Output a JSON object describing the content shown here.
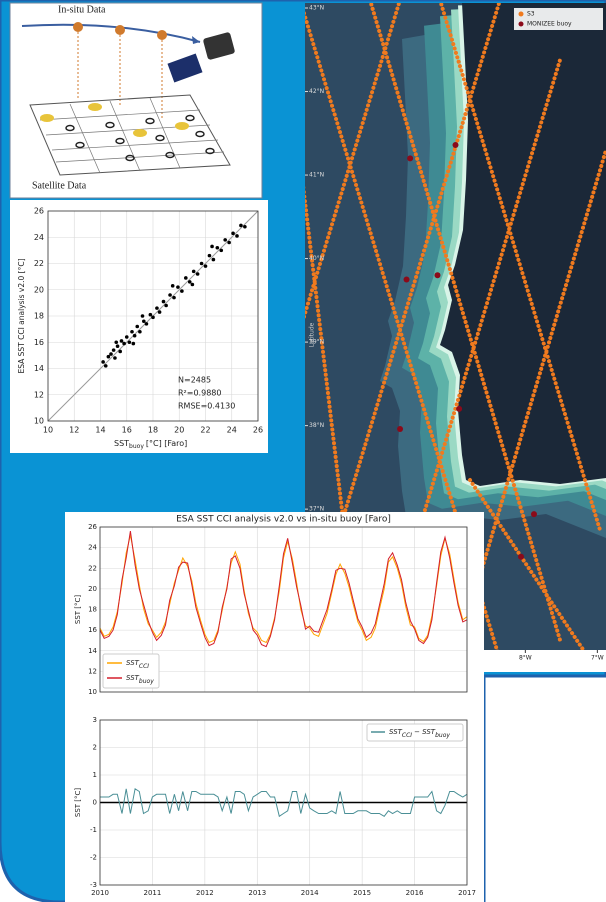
{
  "diagram": {
    "top_label": "In-situ Data",
    "bottom_label": "Satellite Data"
  },
  "chart_data": [
    {
      "type": "scatter",
      "ylabel": "ESA SST CCI analysis v2.0 [°C]",
      "xlabel": "SST",
      "xlabel_sub": "buoy",
      "xlabel_unit": "[°C] [Faro]",
      "annotations": [
        "N=2485",
        "R²=0.9880",
        "RMSE=0.4130"
      ],
      "color": "#000000",
      "grid": true,
      "xlim": [
        10,
        26
      ],
      "ylim": [
        10,
        26
      ],
      "xticks": [
        10,
        12,
        14,
        16,
        18,
        20,
        22,
        24,
        26
      ],
      "yticks": [
        10,
        12,
        14,
        16,
        18,
        20,
        22,
        24,
        26
      ],
      "x": [
        14.2,
        14.4,
        14.6,
        14.8,
        15.0,
        15.1,
        15.3,
        15.5,
        15.6,
        15.8,
        16.0,
        16.2,
        16.4,
        16.6,
        16.8,
        17.0,
        17.3,
        17.5,
        17.8,
        18.0,
        18.3,
        18.5,
        18.8,
        19.0,
        19.3,
        19.6,
        19.9,
        20.2,
        20.5,
        20.8,
        21.1,
        21.4,
        21.7,
        22.0,
        22.3,
        22.6,
        22.9,
        23.2,
        23.5,
        23.8,
        24.1,
        24.4,
        24.7,
        25.0,
        15.2,
        16.5,
        17.2,
        19.5,
        21.0,
        22.5
      ],
      "y": [
        14.5,
        14.2,
        14.9,
        15.1,
        15.4,
        14.8,
        15.7,
        15.3,
        16.1,
        15.9,
        16.4,
        16.0,
        16.8,
        16.5,
        17.2,
        16.8,
        17.6,
        17.4,
        18.1,
        17.9,
        18.6,
        18.3,
        19.1,
        18.8,
        19.6,
        19.4,
        20.2,
        19.9,
        20.9,
        20.6,
        21.4,
        21.2,
        22.0,
        21.8,
        22.6,
        22.3,
        23.2,
        23.0,
        23.8,
        23.6,
        24.3,
        24.1,
        24.9,
        24.8,
        16.0,
        15.9,
        18.0,
        20.3,
        20.4,
        23.3
      ]
    },
    {
      "type": "map",
      "ylabel": "Latitude",
      "xlim": [
        -11.06,
        -6.88
      ],
      "ylim": [
        35.05,
        43.06
      ],
      "yticks": [
        {
          "value": 43,
          "label": "43°N"
        },
        {
          "value": 42,
          "label": "42°N"
        },
        {
          "value": 41,
          "label": "41°N"
        },
        {
          "value": 40,
          "label": "40°N"
        },
        {
          "value": 39,
          "label": "39°N"
        },
        {
          "value": 38,
          "label": "38°N"
        },
        {
          "value": 37,
          "label": "37°N"
        }
      ],
      "xticks": [
        {
          "value": -8,
          "label": "8°W"
        },
        {
          "value": -7,
          "label": "7°W"
        }
      ],
      "series": [
        {
          "name": "S3",
          "color": "#f07a1e"
        },
        {
          "name": "MONIZEE buoy",
          "color": "#8b0a1a",
          "x": [
            -9.6,
            -8.97,
            -9.65,
            -9.22,
            -8.92,
            -9.74,
            -7.88,
            -8.06
          ],
          "y": [
            41.2,
            41.36,
            39.75,
            39.8,
            38.2,
            37.96,
            36.94,
            36.43
          ]
        }
      ]
    },
    {
      "type": "line",
      "title": "ESA SST CCI analysis v2.0 vs in-situ buoy [Faro]",
      "ylabel": "SST [°C]",
      "grid": true,
      "xlim": [
        2010,
        2017
      ],
      "xticks": [
        2010,
        2011,
        2012,
        2013,
        2014,
        2015,
        2016,
        2017
      ],
      "ylim": [
        10,
        26
      ],
      "yticks": [
        10,
        12,
        14,
        16,
        18,
        20,
        22,
        24,
        26
      ],
      "x": [
        2010,
        2010.08,
        2010.17,
        2010.25,
        2010.33,
        2010.42,
        2010.5,
        2010.58,
        2010.67,
        2010.75,
        2010.83,
        2010.92,
        2011,
        2011.08,
        2011.17,
        2011.25,
        2011.33,
        2011.42,
        2011.5,
        2011.58,
        2011.67,
        2011.75,
        2011.83,
        2011.92,
        2012,
        2012.08,
        2012.17,
        2012.25,
        2012.33,
        2012.42,
        2012.5,
        2012.58,
        2012.67,
        2012.75,
        2012.83,
        2012.92,
        2013,
        2013.08,
        2013.17,
        2013.25,
        2013.33,
        2013.42,
        2013.5,
        2013.58,
        2013.67,
        2013.75,
        2013.83,
        2013.92,
        2014,
        2014.08,
        2014.17,
        2014.25,
        2014.33,
        2014.42,
        2014.5,
        2014.58,
        2014.67,
        2014.75,
        2014.83,
        2014.92,
        2015,
        2015.08,
        2015.17,
        2015.25,
        2015.33,
        2015.42,
        2015.5,
        2015.58,
        2015.67,
        2015.75,
        2015.83,
        2015.92,
        2016,
        2016.08,
        2016.17,
        2016.25,
        2016.33,
        2016.42,
        2016.5,
        2016.58,
        2016.67,
        2016.75,
        2016.83,
        2016.92,
        2017
      ],
      "series": [
        {
          "name": "SST",
          "name_sub": "CCI",
          "color": "#ffa500",
          "values": [
            16.2,
            15.4,
            15.6,
            16.3,
            17.8,
            20.5,
            23.5,
            25.2,
            22.8,
            20.4,
            18.1,
            16.6,
            16.0,
            15.3,
            15.8,
            16.8,
            18.5,
            20.6,
            21.8,
            23.0,
            22.2,
            20.8,
            18.6,
            16.9,
            15.6,
            14.8,
            15.0,
            16.0,
            17.9,
            20.2,
            22.5,
            23.6,
            22.4,
            19.8,
            17.6,
            16.2,
            15.8,
            15.0,
            14.8,
            15.6,
            17.2,
            19.8,
            23.0,
            24.6,
            22.9,
            20.6,
            18.0,
            16.4,
            16.2,
            15.6,
            15.4,
            16.5,
            17.6,
            19.6,
            21.4,
            22.4,
            21.5,
            20.2,
            18.5,
            16.8,
            16.0,
            15.0,
            15.3,
            16.2,
            18.0,
            20.0,
            22.6,
            23.1,
            22.0,
            20.5,
            18.3,
            16.5,
            16.3,
            15.2,
            14.9,
            15.5,
            17.4,
            20.3,
            23.2,
            24.9,
            23.4,
            21.0,
            18.7,
            17.0,
            17.3
          ]
        },
        {
          "name": "SST",
          "name_sub": "buoy",
          "color": "#d41f2c",
          "values": [
            16.0,
            15.2,
            15.4,
            16.0,
            17.5,
            20.9,
            23.0,
            25.6,
            22.3,
            20.0,
            18.5,
            16.9,
            15.8,
            15.0,
            15.5,
            16.5,
            18.9,
            20.3,
            22.1,
            22.6,
            22.5,
            20.4,
            18.2,
            16.6,
            15.3,
            14.5,
            14.7,
            15.8,
            18.2,
            20.0,
            22.9,
            23.2,
            22.0,
            19.5,
            17.9,
            16.0,
            15.5,
            14.6,
            14.4,
            15.4,
            17.0,
            20.3,
            23.4,
            24.9,
            22.5,
            20.2,
            18.4,
            16.1,
            16.4,
            15.9,
            15.8,
            16.9,
            18.0,
            19.9,
            21.8,
            22.0,
            21.9,
            20.6,
            18.9,
            17.1,
            16.3,
            15.3,
            15.7,
            16.6,
            18.4,
            20.5,
            22.9,
            23.5,
            22.3,
            20.9,
            18.7,
            16.9,
            16.1,
            15.0,
            14.7,
            15.3,
            17.0,
            20.6,
            23.6,
            25.0,
            23.0,
            20.6,
            18.4,
            16.8,
            17.0
          ]
        }
      ]
    },
    {
      "type": "line",
      "ylabel": "SST [°C]",
      "grid": true,
      "zero_line": true,
      "xlim": [
        2010,
        2017
      ],
      "xticks": [
        2010,
        2011,
        2012,
        2013,
        2014,
        2015,
        2016,
        2017
      ],
      "ylim": [
        -3,
        3
      ],
      "yticks": [
        -3,
        -2,
        -1,
        0,
        1,
        2,
        3
      ],
      "x": [
        2010,
        2010.08,
        2010.17,
        2010.25,
        2010.33,
        2010.42,
        2010.5,
        2010.58,
        2010.67,
        2010.75,
        2010.83,
        2010.92,
        2011,
        2011.08,
        2011.17,
        2011.25,
        2011.33,
        2011.42,
        2011.5,
        2011.58,
        2011.67,
        2011.75,
        2011.83,
        2011.92,
        2012,
        2012.08,
        2012.17,
        2012.25,
        2012.33,
        2012.42,
        2012.5,
        2012.58,
        2012.67,
        2012.75,
        2012.83,
        2012.92,
        2013,
        2013.08,
        2013.17,
        2013.25,
        2013.33,
        2013.42,
        2013.5,
        2013.58,
        2013.67,
        2013.75,
        2013.83,
        2013.92,
        2014,
        2014.08,
        2014.17,
        2014.25,
        2014.33,
        2014.42,
        2014.5,
        2014.58,
        2014.67,
        2014.75,
        2014.83,
        2014.92,
        2015,
        2015.08,
        2015.17,
        2015.25,
        2015.33,
        2015.42,
        2015.5,
        2015.58,
        2015.67,
        2015.75,
        2015.83,
        2015.92,
        2016,
        2016.08,
        2016.17,
        2016.25,
        2016.33,
        2016.42,
        2016.5,
        2016.58,
        2016.67,
        2016.75,
        2016.83,
        2016.92,
        2017
      ],
      "series": [
        {
          "name": "SST",
          "name_sub": "CCI",
          "name_minus": "− SST",
          "name_minus_sub": "buoy",
          "color": "#4a8f96",
          "values": [
            0.2,
            0.2,
            0.2,
            0.3,
            0.3,
            -0.4,
            0.5,
            -0.4,
            0.5,
            0.4,
            -0.4,
            -0.3,
            0.2,
            0.3,
            0.3,
            0.3,
            -0.4,
            0.3,
            -0.3,
            0.4,
            -0.3,
            0.4,
            0.4,
            0.3,
            0.3,
            0.3,
            0.3,
            0.2,
            -0.3,
            0.2,
            -0.4,
            0.4,
            0.4,
            0.3,
            -0.3,
            0.2,
            0.3,
            0.4,
            0.4,
            0.2,
            0.2,
            -0.5,
            -0.4,
            -0.3,
            0.4,
            0.4,
            -0.4,
            0.3,
            -0.2,
            -0.3,
            -0.4,
            -0.4,
            -0.4,
            -0.3,
            -0.4,
            0.4,
            -0.4,
            -0.4,
            -0.4,
            -0.3,
            -0.3,
            -0.3,
            -0.4,
            -0.4,
            -0.4,
            -0.5,
            -0.3,
            -0.4,
            -0.3,
            -0.4,
            -0.4,
            -0.4,
            0.2,
            0.2,
            0.2,
            0.2,
            0.4,
            -0.3,
            -0.4,
            -0.1,
            0.4,
            0.4,
            0.3,
            0.2,
            0.3
          ]
        }
      ]
    }
  ]
}
